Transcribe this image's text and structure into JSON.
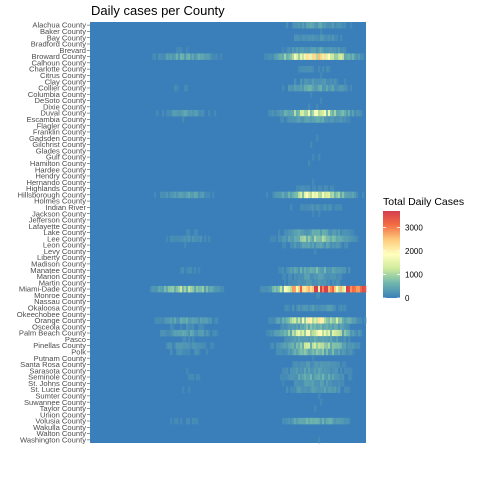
{
  "chart_data": {
    "type": "heatmap",
    "title": "Daily cases per County",
    "xlabel": "",
    "ylabel": "",
    "legend": {
      "title": "Total Daily Cases",
      "ticks": [
        0,
        1000,
        2000,
        3000
      ],
      "range": [
        0,
        3700
      ],
      "placement": "right",
      "colors": [
        "#3a7fb9",
        "#6fb6ad",
        "#cfeb9c",
        "#ffffbe",
        "#fdcc7d",
        "#f46d43",
        "#d53e4f"
      ]
    },
    "grid": false,
    "x_axis": "date (no tick labels shown)",
    "counties": [
      "Alachua County",
      "Baker County",
      "Bay County",
      "Bradford County",
      "Brevard",
      "Broward County",
      "Calhoun County",
      "Charlotte County",
      "Citrus County",
      "Clay County",
      "Collier County",
      "Columbia County",
      "DeSoto County",
      "Dixie County",
      "Duval County",
      "Escambia County",
      "Flagler County",
      "Franklin County",
      "Gadsden County",
      "Gilchrist County",
      "Glades County",
      "Gulf County",
      "Hamilton County",
      "Hardee County",
      "Hendry County",
      "Hernando County",
      "Highlands County",
      "Hillsborough County",
      "Holmes County",
      "Indian River",
      "Jackson County",
      "Jefferson County",
      "Lafayette County",
      "Lake County",
      "Lee County",
      "Leon County",
      "Levy County",
      "Liberty County",
      "Madison County",
      "Manatee County",
      "Marion County",
      "Martin County",
      "Miami-Dade County",
      "Monroe County",
      "Nassau County",
      "Okaloosa County",
      "Okeechobee County",
      "Orange County",
      "Osceola County",
      "Palm Beach County",
      "Pasco",
      "Pinellas County",
      "Polk",
      "Putnam County",
      "Santa Rosa County",
      "Sarasota County",
      "Seminole County",
      "St. Johns County",
      "St. Lucie County",
      "Sumter County",
      "Suwannee County",
      "Taylor County",
      "Union County",
      "Volusia County",
      "Wakulla County",
      "Walton County",
      "Washington County"
    ],
    "approx_peak_daily_cases": {
      "Broward County": 1900,
      "Collier County": 450,
      "Duval County": 1300,
      "Escambia County": 400,
      "Hillsborough County": 1400,
      "Lee County": 800,
      "Leon County": 350,
      "Manatee County": 500,
      "Miami-Dade County": 3700,
      "Orange County": 1600,
      "Osceola County": 600,
      "Palm Beach County": 1500,
      "Pasco": 450,
      "Pinellas County": 1000,
      "Polk": 700,
      "Sarasota County": 350,
      "Seminole County": 450,
      "St. Lucie County": 350,
      "Volusia County": 500,
      "Brevard": 400,
      "Lake County": 450,
      "Marion County": 300,
      "Alachua County": 350,
      "Clay County": 250,
      "St. Johns County": 300,
      "Okaloosa County": 300,
      "Santa Rosa County": 250,
      "Bay County": 250,
      "Martin County": 250,
      "Charlotte County": 150,
      "Highlands County": 150,
      "Indian River": 200
    }
  }
}
